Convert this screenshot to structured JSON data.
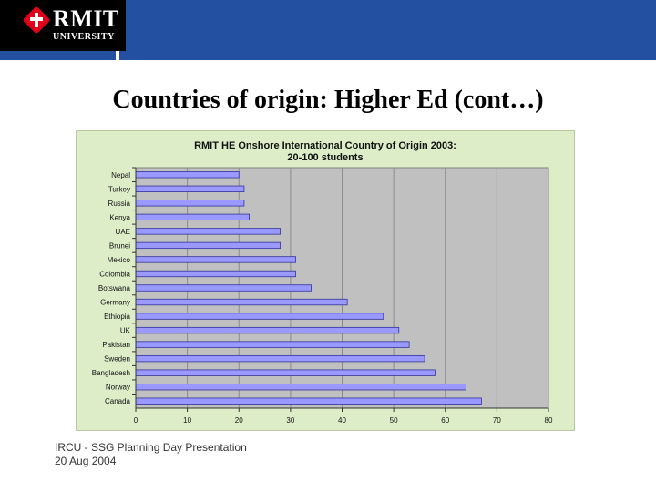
{
  "header": {
    "logo_main": "RMIT",
    "logo_sub": "UNIVERSITY",
    "colors": {
      "bar": "#2350a0",
      "logo_bg": "#000000",
      "logo_mark": "#e0001a"
    }
  },
  "slide": {
    "title": "Countries of origin: Higher Ed (cont…)"
  },
  "chart_data": {
    "type": "bar",
    "orientation": "horizontal",
    "title": "RMIT HE Onshore International Country of Origin 2003:",
    "subtitle": "20-100 students",
    "categories": [
      "Nepal",
      "Turkey",
      "Russia",
      "Kenya",
      "UAE",
      "Brunei",
      "Mexico",
      "Colombia",
      "Botswana",
      "Germany",
      "Ethiopia",
      "UK",
      "Pakistan",
      "Sweden",
      "Bangladesh",
      "Norway",
      "Canada"
    ],
    "values": [
      20,
      21,
      21,
      22,
      28,
      28,
      31,
      31,
      34,
      41,
      48,
      51,
      53,
      56,
      58,
      64,
      67
    ],
    "xlim": [
      0,
      80
    ],
    "xticks": [
      0,
      10,
      20,
      30,
      40,
      50,
      60,
      70,
      80
    ],
    "xlabel": "",
    "ylabel": "",
    "grid": true,
    "colors": {
      "bar": "#9999ff",
      "bar_edge": "#333399",
      "plot_bg": "#c0c0c0",
      "frame_bg": "#ddedc8"
    }
  },
  "footer": {
    "line1": "IRCU - SSG Planning Day Presentation",
    "line2": "20 Aug 2004"
  }
}
